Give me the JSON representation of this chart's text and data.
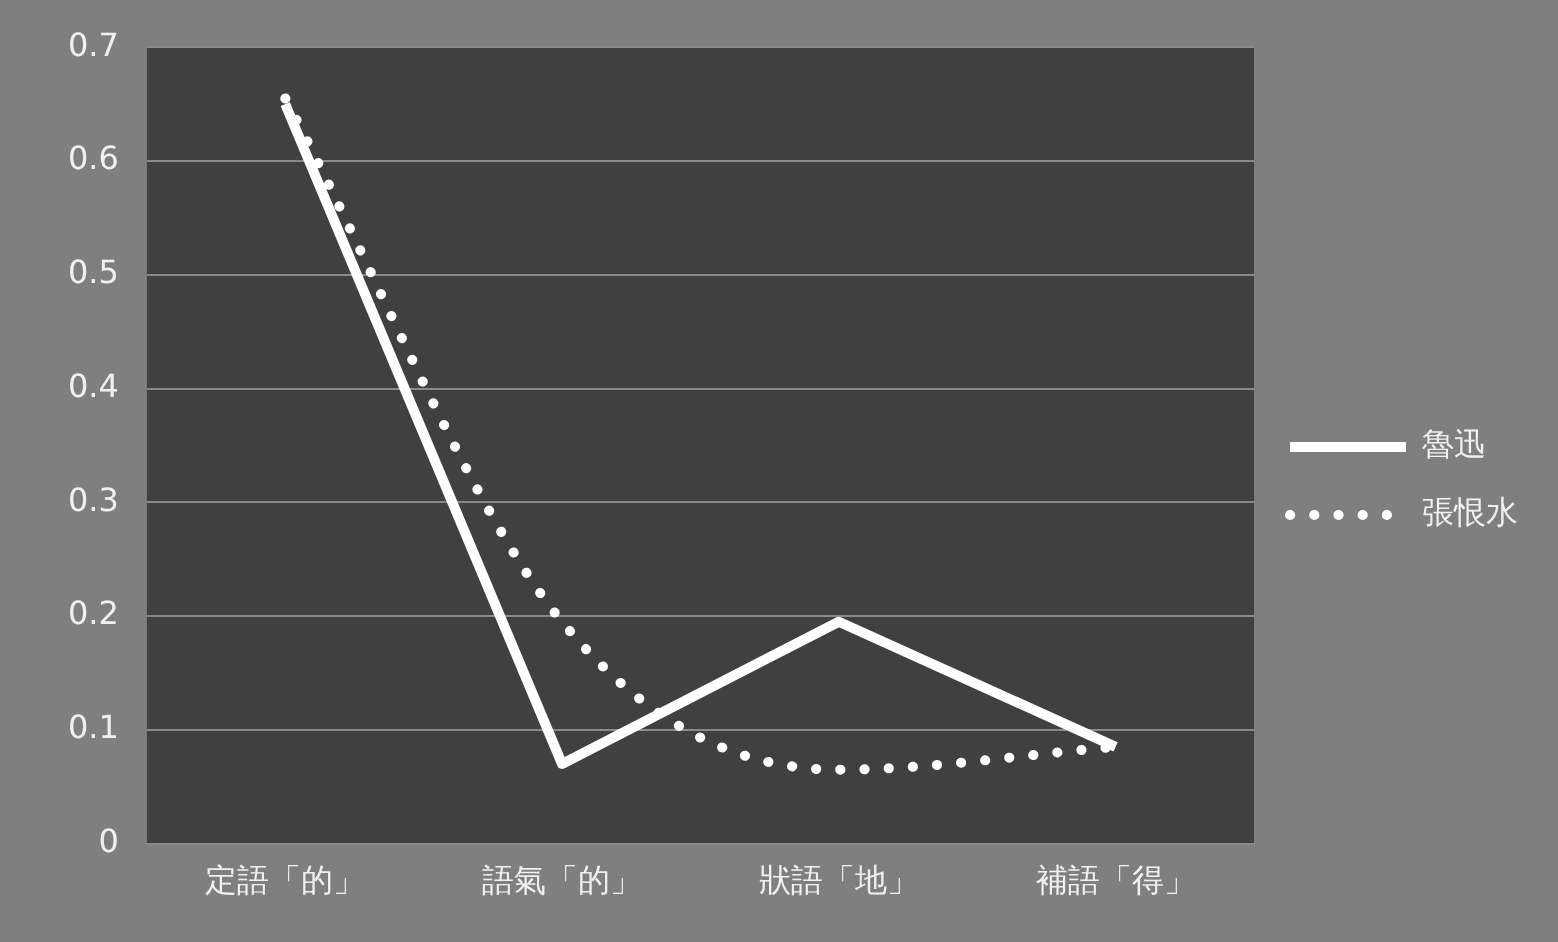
{
  "chart_data": {
    "type": "line",
    "categories": [
      "定語「的」",
      "語氣「的」",
      "狀語「地」",
      "補語「得」"
    ],
    "series": [
      {
        "name": "魯迅",
        "color": "#ffffff",
        "values": [
          0.65,
          0.07,
          0.195,
          0.085
        ],
        "line_style": "solid"
      },
      {
        "name": "張恨水",
        "color": "#ffffff",
        "values": [
          0.655,
          0.195,
          0.065,
          0.085
        ],
        "line_style": "dotted"
      }
    ],
    "ylim": [
      0,
      0.7
    ],
    "yticks": [
      0,
      0.1,
      0.2,
      0.3,
      0.4,
      0.5,
      0.6,
      0.7
    ],
    "grid": "y",
    "legend": "right",
    "marker": "none"
  }
}
